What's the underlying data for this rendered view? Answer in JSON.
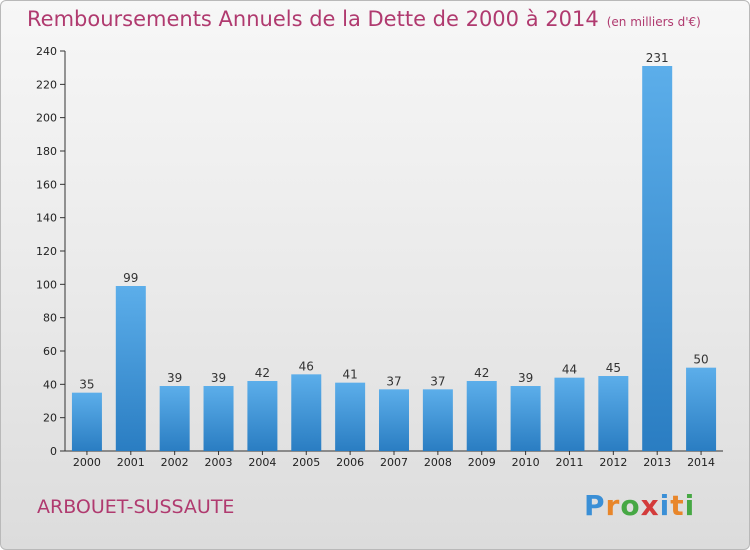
{
  "title": {
    "main": "Remboursements Annuels de la Dette de 2000 à 2014",
    "unit": "(en milliers d'€)"
  },
  "commune": "ARBOUET-SUSSAUTE",
  "logo": {
    "letters": [
      "P",
      "r",
      "o",
      "x",
      "i",
      "t",
      "i"
    ],
    "colors": [
      "#3a8fd6",
      "#e8862a",
      "#46a844",
      "#d33b3b",
      "#3a8fd6",
      "#e8862a",
      "#46a844"
    ]
  },
  "colors": {
    "title": "#b03a6f",
    "bar_top": "#5caeea",
    "bar_bottom": "#2a7dc2",
    "axis": "#333333"
  },
  "chart_data": {
    "type": "bar",
    "categories": [
      "2000",
      "2001",
      "2002",
      "2003",
      "2004",
      "2005",
      "2006",
      "2007",
      "2008",
      "2009",
      "2010",
      "2011",
      "2012",
      "2013",
      "2014"
    ],
    "values": [
      35,
      99,
      39,
      39,
      42,
      46,
      41,
      37,
      37,
      42,
      39,
      44,
      45,
      231,
      50
    ],
    "ylim": [
      0,
      240
    ],
    "yticks": [
      0,
      20,
      40,
      60,
      80,
      100,
      120,
      140,
      160,
      180,
      200,
      220,
      240
    ],
    "grid": false,
    "data_labels": true
  }
}
